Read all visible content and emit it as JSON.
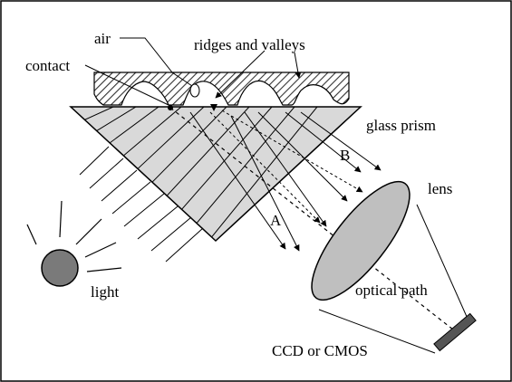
{
  "labels": {
    "air": "air",
    "ridges_and_valleys": "ridges and valleys",
    "contact": "contact",
    "glass_prism": "glass prism",
    "ray_b": "B",
    "ray_a": "A",
    "lens": "lens",
    "light": "light",
    "optical_path": "optical path",
    "sensor": "CCD or CMOS"
  },
  "colors": {
    "frame": "#000000",
    "prism_fill": "#d9d9d9",
    "lens_fill": "#bfbfbf",
    "light_source_fill": "#7a7a7a",
    "sensor_fill": "#555555",
    "finger_hatch": "#333333"
  },
  "icons": {
    "light_source": "light-source-circle-icon",
    "sensor": "sensor-bar-icon",
    "lens": "lens-ellipse-icon"
  }
}
